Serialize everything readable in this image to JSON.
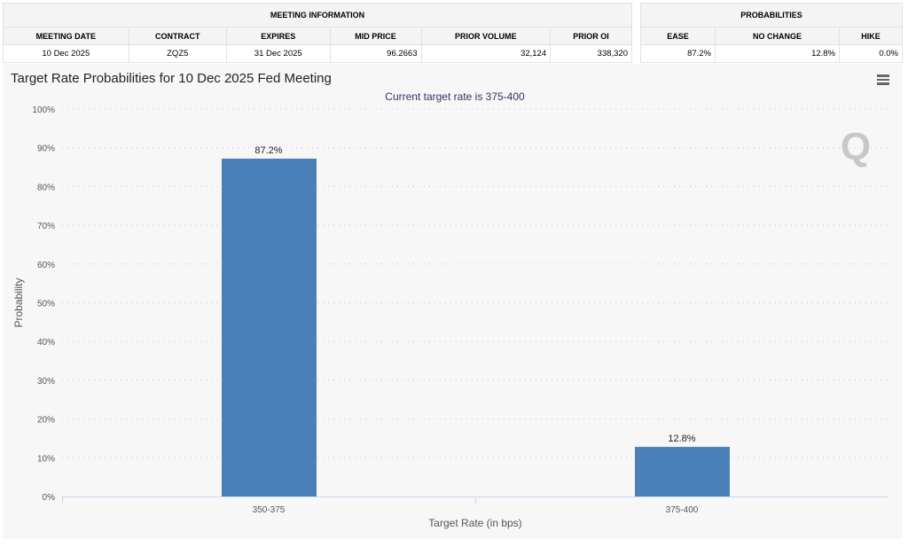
{
  "meeting_info": {
    "title": "MEETING INFORMATION",
    "headers": [
      "MEETING DATE",
      "CONTRACT",
      "EXPIRES",
      "MID PRICE",
      "PRIOR VOLUME",
      "PRIOR OI"
    ],
    "values": [
      "10 Dec 2025",
      "ZQZ5",
      "31 Dec 2025",
      "96.2663",
      "32,124",
      "338,320"
    ]
  },
  "probabilities": {
    "title": "PROBABILITIES",
    "headers": [
      "EASE",
      "NO CHANGE",
      "HIKE"
    ],
    "values": [
      "87.2%",
      "12.8%",
      "0.0%"
    ]
  },
  "chart": {
    "title": "Target Rate Probabilities for 10 Dec 2025 Fed Meeting",
    "menu_icon": "hamburger-menu-icon",
    "watermark_icon": "q-logo-icon"
  },
  "chart_data": {
    "type": "bar",
    "title": "Target Rate Probabilities for 10 Dec 2025 Fed Meeting",
    "subtitle": "Current target rate is 375-400",
    "categories": [
      "350-375",
      "375-400"
    ],
    "values": [
      87.2,
      12.8
    ],
    "data_labels": [
      "87.2%",
      "12.8%"
    ],
    "xlabel": "Target Rate (in bps)",
    "ylabel": "Probability",
    "ylim": [
      0,
      100
    ],
    "yticks": [
      "0%",
      "10%",
      "20%",
      "30%",
      "40%",
      "50%",
      "60%",
      "70%",
      "80%",
      "90%",
      "100%"
    ],
    "grid": true,
    "bar_color": "#4a80b8",
    "subtitle_color": "#333366"
  }
}
